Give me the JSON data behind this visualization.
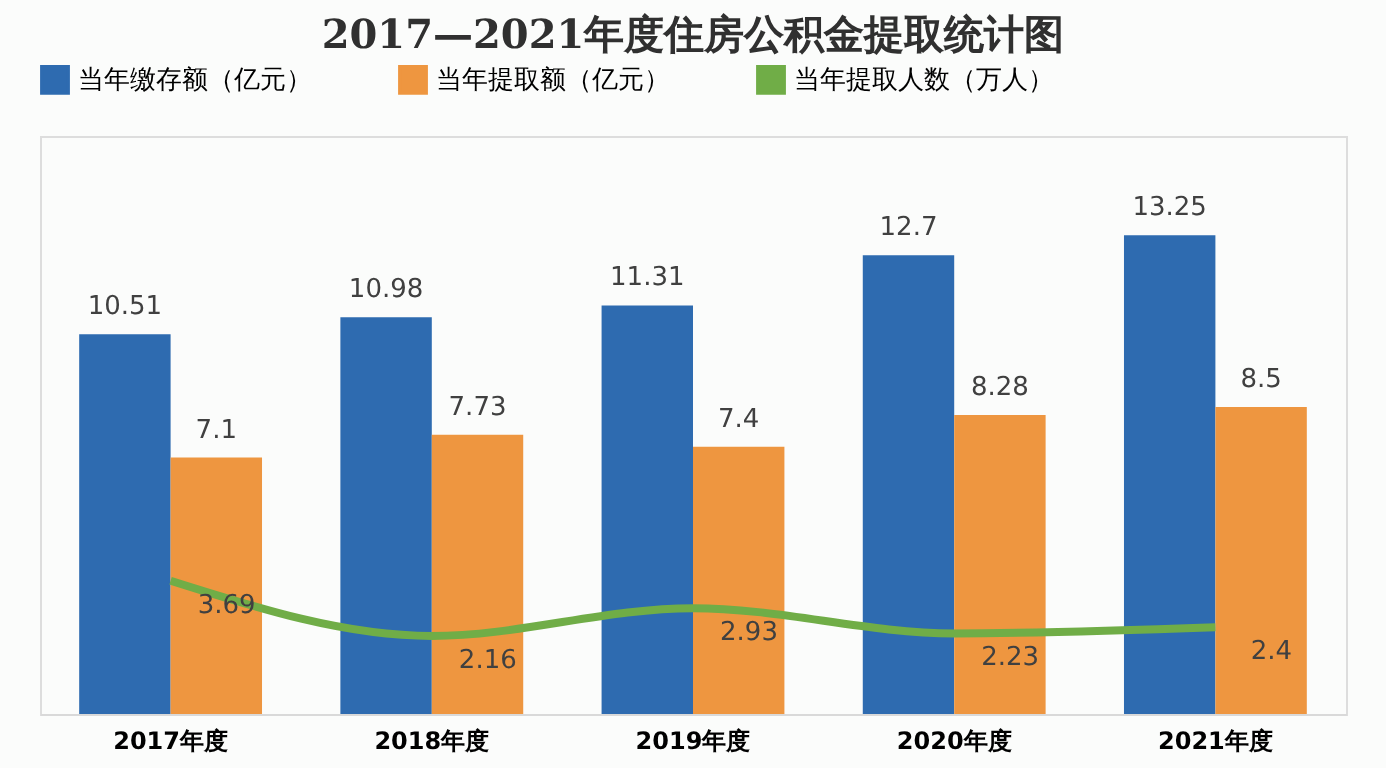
{
  "chart_data": {
    "type": "bar",
    "title": "2017—2021年度住房公积金提取统计图",
    "categories": [
      "2017年度",
      "2018年度",
      "2019年度",
      "2020年度",
      "2021年度"
    ],
    "series": [
      {
        "name": "当年缴存额（亿元）",
        "color": "#2e6bb0",
        "values": [
          10.51,
          10.98,
          11.31,
          12.7,
          13.25
        ]
      },
      {
        "name": "当年提取额（亿元）",
        "color": "#ee9640",
        "values": [
          7.1,
          7.73,
          7.4,
          8.28,
          8.5
        ]
      },
      {
        "name": "当年提取人数（万人）",
        "color": "#70ad47",
        "type": "line",
        "values": [
          3.69,
          2.16,
          2.93,
          2.23,
          2.4
        ]
      }
    ],
    "ylim": [
      0,
      16
    ],
    "data_labels": true,
    "grid": false,
    "legend": "top",
    "tick_labels": "x",
    "marker": "none",
    "line_style": "solid"
  }
}
